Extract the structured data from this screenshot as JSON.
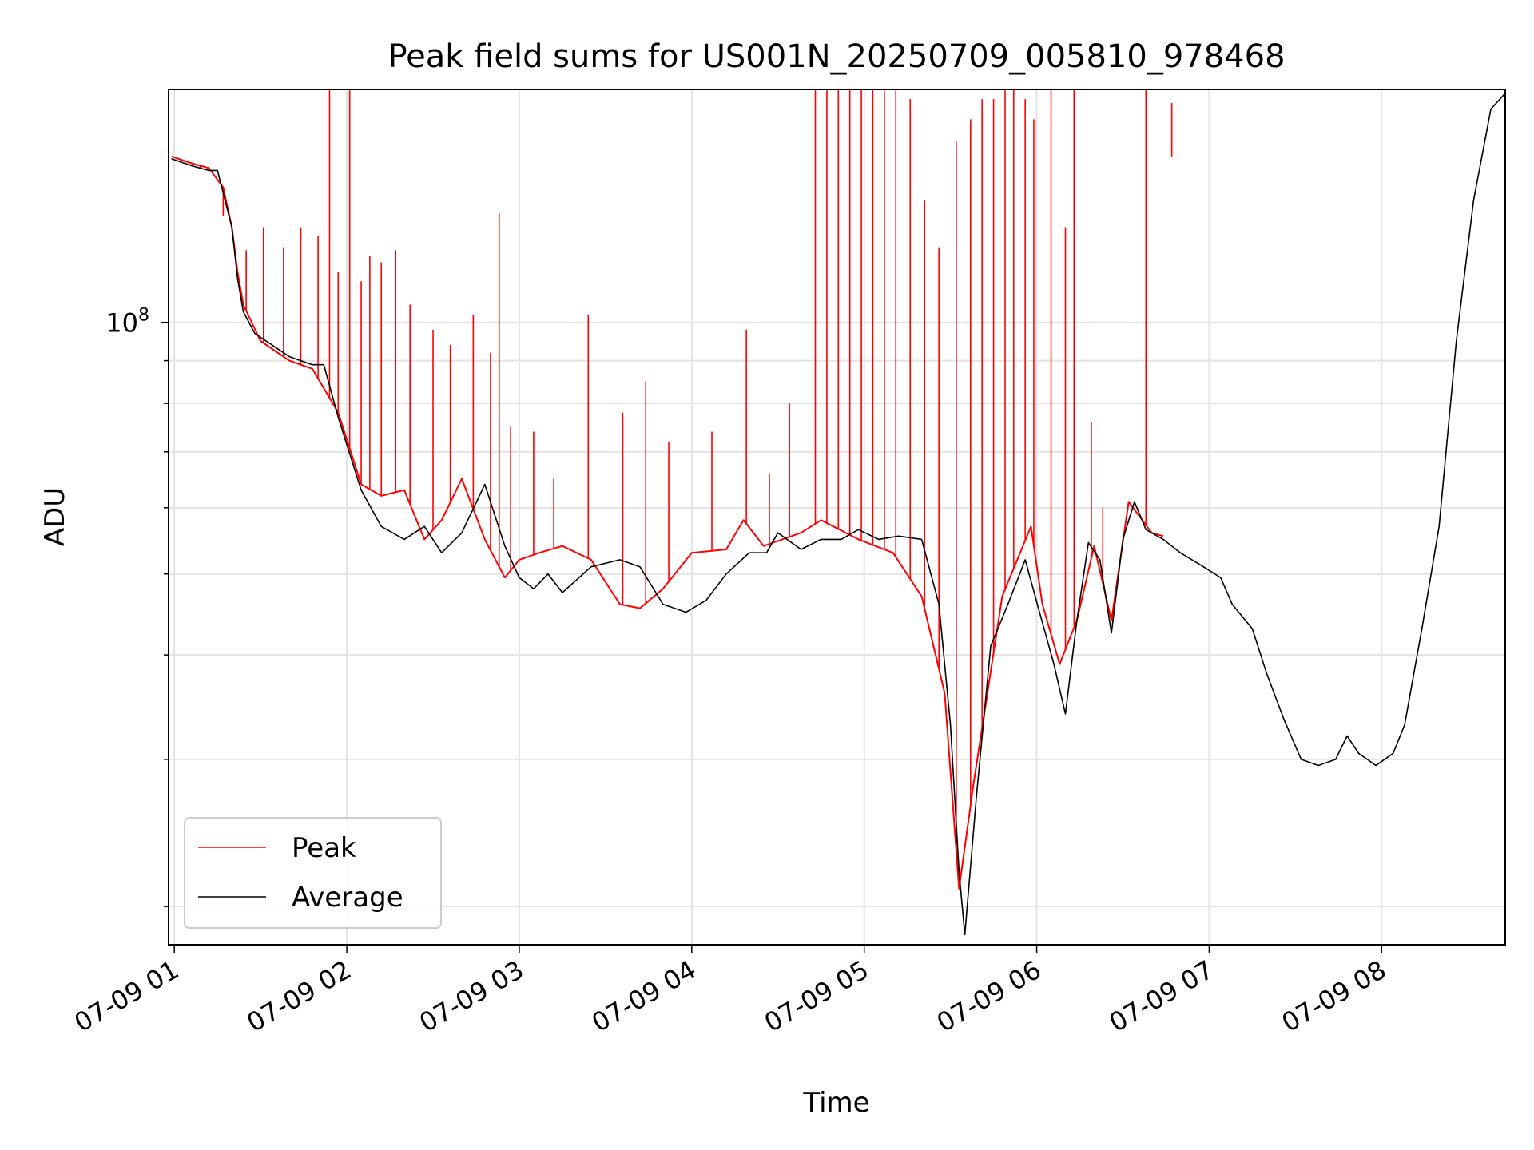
{
  "chart_data": {
    "type": "line",
    "title": "Peak field sums for US001N_20250709_005810_978468",
    "xlabel": "Time",
    "ylabel": "ADU",
    "y_scale": "log",
    "ylim": [
      18000000,
      190000000
    ],
    "xlim": [
      "2025-07-09 00:58",
      "2025-07-09 08:43"
    ],
    "grid": true,
    "legend_position": "lower-left",
    "x_tick_labels": [
      "07-09 01",
      "07-09 02",
      "07-09 03",
      "07-09 04",
      "07-09 05",
      "07-09 06",
      "07-09 07",
      "07-09 08"
    ],
    "x_tick_times": [
      "2025-07-09 01:00",
      "2025-07-09 02:00",
      "2025-07-09 03:00",
      "2025-07-09 04:00",
      "2025-07-09 05:00",
      "2025-07-09 06:00",
      "2025-07-09 07:00",
      "2025-07-09 08:00"
    ],
    "y_tick_labels": [
      {
        "base": "10",
        "exp": "8",
        "value": 100000000
      }
    ],
    "series": [
      {
        "name": "Peak",
        "color": "#ff0000",
        "points": [
          [
            "2025-07-09 00:59",
            158000000.0
          ],
          [
            "2025-07-09 01:06",
            155000000.0
          ],
          [
            "2025-07-09 01:12",
            153000000.0
          ],
          [
            "2025-07-09 01:17",
            145000000.0
          ],
          [
            "2025-07-09 01:20",
            130000000.0
          ],
          [
            "2025-07-09 01:22",
            115000000.0
          ],
          [
            "2025-07-09 01:24",
            105000000.0
          ],
          [
            "2025-07-09 01:30",
            95000000.0
          ],
          [
            "2025-07-09 01:40",
            90000000.0
          ],
          [
            "2025-07-09 01:48",
            88000000.0
          ],
          [
            "2025-07-09 01:57",
            78000000.0
          ],
          [
            "2025-07-09 02:05",
            64000000.0
          ],
          [
            "2025-07-09 02:12",
            62000000.0
          ],
          [
            "2025-07-09 02:20",
            63000000.0
          ],
          [
            "2025-07-09 02:27",
            55000000.0
          ],
          [
            "2025-07-09 02:33",
            58000000.0
          ],
          [
            "2025-07-09 02:40",
            65000000.0
          ],
          [
            "2025-07-09 02:48",
            55000000.0
          ],
          [
            "2025-07-09 02:55",
            49500000.0
          ],
          [
            "2025-07-09 03:00",
            52000000.0
          ],
          [
            "2025-07-09 03:07",
            53000000.0
          ],
          [
            "2025-07-09 03:15",
            54000000.0
          ],
          [
            "2025-07-09 03:25",
            52000000.0
          ],
          [
            "2025-07-09 03:35",
            46000000.0
          ],
          [
            "2025-07-09 03:42",
            45500000.0
          ],
          [
            "2025-07-09 03:50",
            48000000.0
          ],
          [
            "2025-07-09 04:00",
            53000000.0
          ],
          [
            "2025-07-09 04:12",
            53500000.0
          ],
          [
            "2025-07-09 04:18",
            58000000.0
          ],
          [
            "2025-07-09 04:25",
            54000000.0
          ],
          [
            "2025-07-09 04:38",
            56000000.0
          ],
          [
            "2025-07-09 04:45",
            58000000.0
          ],
          [
            "2025-07-09 04:58",
            55000000.0
          ],
          [
            "2025-07-09 05:10",
            53000000.0
          ],
          [
            "2025-07-09 05:20",
            47000000.0
          ],
          [
            "2025-07-09 05:28",
            36000000.0
          ],
          [
            "2025-07-09 05:33",
            21000000.0
          ],
          [
            "2025-07-09 05:38",
            28000000.0
          ],
          [
            "2025-07-09 05:48",
            47000000.0
          ],
          [
            "2025-07-09 05:58",
            57000000.0
          ],
          [
            "2025-07-09 06:02",
            46000000.0
          ],
          [
            "2025-07-09 06:08",
            39000000.0
          ],
          [
            "2025-07-09 06:14",
            44000000.0
          ],
          [
            "2025-07-09 06:20",
            54000000.0
          ],
          [
            "2025-07-09 06:26",
            44000000.0
          ],
          [
            "2025-07-09 06:32",
            61000000.0
          ],
          [
            "2025-07-09 06:40",
            56000000.0
          ],
          [
            "2025-07-09 06:44",
            55500000.0
          ]
        ],
        "spikes": [
          [
            "2025-07-09 01:09",
            153000000.0
          ],
          [
            "2025-07-09 01:17",
            134000000.0
          ],
          [
            "2025-07-09 01:25",
            122000000.0
          ],
          [
            "2025-07-09 01:31",
            130000000.0
          ],
          [
            "2025-07-09 01:38",
            123000000.0
          ],
          [
            "2025-07-09 01:44",
            130000000.0
          ],
          [
            "2025-07-09 01:50",
            127000000.0
          ],
          [
            "2025-07-09 01:54",
            190000000.0
          ],
          [
            "2025-07-09 01:57",
            115000000.0
          ],
          [
            "2025-07-09 02:01",
            190000000.0
          ],
          [
            "2025-07-09 02:05",
            112000000.0
          ],
          [
            "2025-07-09 02:08",
            120000000.0
          ],
          [
            "2025-07-09 02:12",
            118000000.0
          ],
          [
            "2025-07-09 02:17",
            122000000.0
          ],
          [
            "2025-07-09 02:22",
            105000000.0
          ],
          [
            "2025-07-09 02:30",
            98000000.0
          ],
          [
            "2025-07-09 02:36",
            94000000.0
          ],
          [
            "2025-07-09 02:44",
            102000000.0
          ],
          [
            "2025-07-09 02:50",
            92000000.0
          ],
          [
            "2025-07-09 02:53",
            135000000.0
          ],
          [
            "2025-07-09 02:57",
            75000000.0
          ],
          [
            "2025-07-09 03:05",
            74000000.0
          ],
          [
            "2025-07-09 03:12",
            65000000.0
          ],
          [
            "2025-07-09 03:24",
            102000000.0
          ],
          [
            "2025-07-09 03:36",
            78000000.0
          ],
          [
            "2025-07-09 03:44",
            85000000.0
          ],
          [
            "2025-07-09 03:52",
            72000000.0
          ],
          [
            "2025-07-09 04:07",
            74000000.0
          ],
          [
            "2025-07-09 04:19",
            98000000.0
          ],
          [
            "2025-07-09 04:27",
            66000000.0
          ],
          [
            "2025-07-09 04:34",
            80000000.0
          ],
          [
            "2025-07-09 04:43",
            190000000.0
          ],
          [
            "2025-07-09 04:47",
            190000000.0
          ],
          [
            "2025-07-09 04:51",
            190000000.0
          ],
          [
            "2025-07-09 04:55",
            190000000.0
          ],
          [
            "2025-07-09 04:59",
            190000000.0
          ],
          [
            "2025-07-09 05:03",
            190000000.0
          ],
          [
            "2025-07-09 05:07",
            190000000.0
          ],
          [
            "2025-07-09 05:11",
            190000000.0
          ],
          [
            "2025-07-09 05:16",
            185000000.0
          ],
          [
            "2025-07-09 05:21",
            140000000.0
          ],
          [
            "2025-07-09 05:26",
            123000000.0
          ],
          [
            "2025-07-09 05:32",
            165000000.0
          ],
          [
            "2025-07-09 05:37",
            175000000.0
          ],
          [
            "2025-07-09 05:41",
            185000000.0
          ],
          [
            "2025-07-09 05:45",
            185000000.0
          ],
          [
            "2025-07-09 05:49",
            190000000.0
          ],
          [
            "2025-07-09 05:52",
            190000000.0
          ],
          [
            "2025-07-09 05:56",
            185000000.0
          ],
          [
            "2025-07-09 05:59",
            175000000.0
          ],
          [
            "2025-07-09 06:05",
            190000000.0
          ],
          [
            "2025-07-09 06:10",
            130000000.0
          ],
          [
            "2025-07-09 06:13",
            190000000.0
          ],
          [
            "2025-07-09 06:19",
            76000000.0
          ],
          [
            "2025-07-09 06:23",
            60000000.0
          ],
          [
            "2025-07-09 06:38",
            190000000.0
          ],
          [
            "2025-07-09 06:47",
            183000000.0
          ]
        ]
      },
      {
        "name": "Average",
        "color": "#000000",
        "points": [
          [
            "2025-07-09 00:59",
            157000000.0
          ],
          [
            "2025-07-09 01:06",
            154000000.0
          ],
          [
            "2025-07-09 01:12",
            152000000.0
          ],
          [
            "2025-07-09 01:15",
            152000000.0
          ],
          [
            "2025-07-09 01:20",
            130000000.0
          ],
          [
            "2025-07-09 01:22",
            113000000.0
          ],
          [
            "2025-07-09 01:24",
            103000000.0
          ],
          [
            "2025-07-09 01:28",
            97000000.0
          ],
          [
            "2025-07-09 01:40",
            91000000.0
          ],
          [
            "2025-07-09 01:48",
            89000000.0
          ],
          [
            "2025-07-09 01:52",
            89000000.0
          ],
          [
            "2025-07-09 01:57",
            77000000.0
          ],
          [
            "2025-07-09 02:05",
            63000000.0
          ],
          [
            "2025-07-09 02:12",
            57000000.0
          ],
          [
            "2025-07-09 02:20",
            55000000.0
          ],
          [
            "2025-07-09 02:27",
            57000000.0
          ],
          [
            "2025-07-09 02:33",
            53000000.0
          ],
          [
            "2025-07-09 02:40",
            56000000.0
          ],
          [
            "2025-07-09 02:48",
            64000000.0
          ],
          [
            "2025-07-09 02:55",
            54000000.0
          ],
          [
            "2025-07-09 03:00",
            49500000.0
          ],
          [
            "2025-07-09 03:05",
            48000000.0
          ],
          [
            "2025-07-09 03:10",
            50000000.0
          ],
          [
            "2025-07-09 03:15",
            47500000.0
          ],
          [
            "2025-07-09 03:25",
            51000000.0
          ],
          [
            "2025-07-09 03:35",
            52000000.0
          ],
          [
            "2025-07-09 03:42",
            51000000.0
          ],
          [
            "2025-07-09 03:50",
            46000000.0
          ],
          [
            "2025-07-09 03:58",
            45000000.0
          ],
          [
            "2025-07-09 04:05",
            46500000.0
          ],
          [
            "2025-07-09 04:12",
            50000000.0
          ],
          [
            "2025-07-09 04:20",
            53000000.0
          ],
          [
            "2025-07-09 04:26",
            53000000.0
          ],
          [
            "2025-07-09 04:30",
            56000000.0
          ],
          [
            "2025-07-09 04:38",
            53500000.0
          ],
          [
            "2025-07-09 04:45",
            55000000.0
          ],
          [
            "2025-07-09 04:52",
            55000000.0
          ],
          [
            "2025-07-09 04:58",
            56500000.0
          ],
          [
            "2025-07-09 05:05",
            55000000.0
          ],
          [
            "2025-07-09 05:12",
            55500000.0
          ],
          [
            "2025-07-09 05:20",
            55000000.0
          ],
          [
            "2025-07-09 05:26",
            46000000.0
          ],
          [
            "2025-07-09 05:30",
            33000000.0
          ],
          [
            "2025-07-09 05:33",
            22000000.0
          ],
          [
            "2025-07-09 05:35",
            18500000.0
          ],
          [
            "2025-07-09 05:39",
            27000000.0
          ],
          [
            "2025-07-09 05:44",
            41000000.0
          ],
          [
            "2025-07-09 05:50",
            46000000.0
          ],
          [
            "2025-07-09 05:56",
            52000000.0
          ],
          [
            "2025-07-09 06:01",
            45000000.0
          ],
          [
            "2025-07-09 06:06",
            39000000.0
          ],
          [
            "2025-07-09 06:10",
            34000000.0
          ],
          [
            "2025-07-09 06:14",
            44000000.0
          ],
          [
            "2025-07-09 06:18",
            54500000.0
          ],
          [
            "2025-07-09 06:22",
            52000000.0
          ],
          [
            "2025-07-09 06:26",
            42500000.0
          ],
          [
            "2025-07-09 06:30",
            55000000.0
          ],
          [
            "2025-07-09 06:34",
            61000000.0
          ],
          [
            "2025-07-09 06:38",
            56500000.0
          ],
          [
            "2025-07-09 06:44",
            55000000.0
          ],
          [
            "2025-07-09 06:50",
            53000000.0
          ],
          [
            "2025-07-09 06:58",
            51000000.0
          ],
          [
            "2025-07-09 07:04",
            49500000.0
          ],
          [
            "2025-07-09 07:08",
            46000000.0
          ],
          [
            "2025-07-09 07:15",
            43000000.0
          ],
          [
            "2025-07-09 07:20",
            38000000.0
          ],
          [
            "2025-07-09 07:26",
            33500000.0
          ],
          [
            "2025-07-09 07:32",
            30000000.0
          ],
          [
            "2025-07-09 07:38",
            29500000.0
          ],
          [
            "2025-07-09 07:44",
            30000000.0
          ],
          [
            "2025-07-09 07:48",
            32000000.0
          ],
          [
            "2025-07-09 07:52",
            30500000.0
          ],
          [
            "2025-07-09 07:58",
            29500000.0
          ],
          [
            "2025-07-09 08:04",
            30500000.0
          ],
          [
            "2025-07-09 08:08",
            33000000.0
          ],
          [
            "2025-07-09 08:14",
            43000000.0
          ],
          [
            "2025-07-09 08:20",
            57000000.0
          ],
          [
            "2025-07-09 08:26",
            95000000.0
          ],
          [
            "2025-07-09 08:32",
            140000000.0
          ],
          [
            "2025-07-09 08:38",
            180000000.0
          ],
          [
            "2025-07-09 08:43",
            188000000.0
          ]
        ]
      }
    ]
  }
}
